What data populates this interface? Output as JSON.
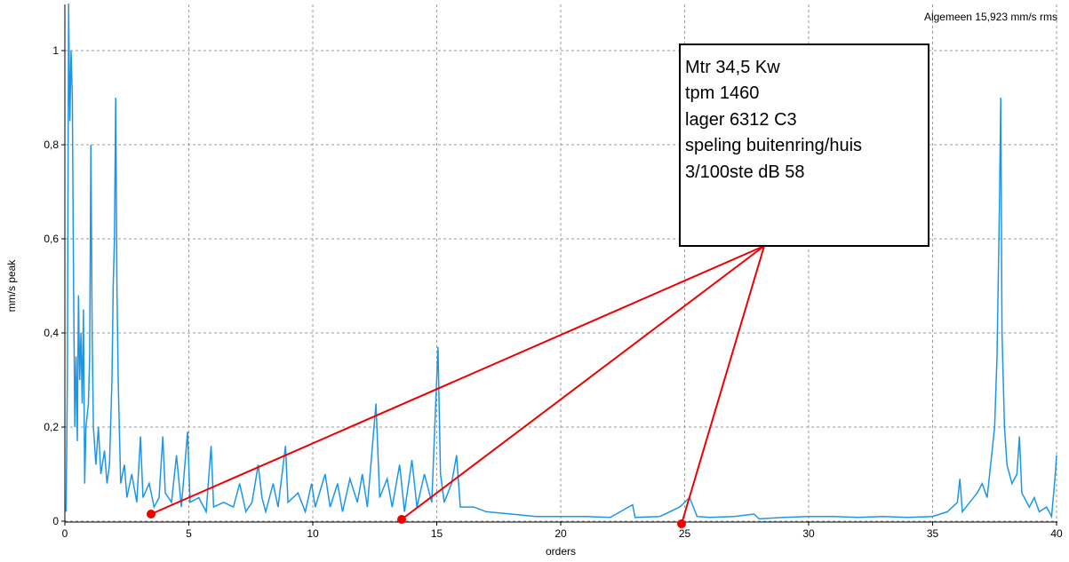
{
  "chart_data": {
    "type": "line",
    "annotation": "Algemeen 15,923 mm/s rms",
    "note_lines": [
      "Mtr 34,5 Kw",
      "tpm 1460",
      "lager 6312 C3",
      "speling buitenring/huis",
      "3/100ste dB 58"
    ],
    "xlabel": "orders",
    "ylabel": "mm/s peak",
    "xlim": [
      0,
      40
    ],
    "ylim": [
      0,
      1.1
    ],
    "xticks": [
      0,
      5,
      10,
      15,
      20,
      25,
      30,
      35,
      40
    ],
    "yticks": [
      0,
      {
        "value": 0.2,
        "label": "0,2"
      },
      {
        "value": 0.4,
        "label": "0,4"
      },
      {
        "value": 0.6,
        "label": "0,6"
      },
      {
        "value": 0.8,
        "label": "0,8"
      },
      1
    ],
    "grid": true,
    "series": [
      {
        "color": "#1e96e8",
        "x": [
          0.05,
          0.1,
          0.15,
          0.2,
          0.25,
          0.3,
          0.35,
          0.4,
          0.45,
          0.5,
          0.55,
          0.6,
          0.65,
          0.7,
          0.75,
          0.8,
          0.85,
          0.95,
          1.0,
          1.05,
          1.1,
          1.15,
          1.25,
          1.35,
          1.45,
          1.6,
          1.7,
          1.8,
          1.9,
          1.95,
          2.0,
          2.05,
          2.1,
          2.15,
          2.25,
          2.4,
          2.5,
          2.7,
          2.9,
          3.05,
          3.15,
          3.4,
          3.6,
          3.8,
          3.95,
          4.05,
          4.3,
          4.5,
          4.7,
          4.95,
          5.05,
          5.4,
          5.7,
          5.9,
          6.0,
          6.4,
          6.8,
          7.05,
          7.3,
          7.55,
          7.8,
          7.95,
          8.1,
          8.4,
          8.6,
          8.9,
          9.0,
          9.4,
          9.7,
          9.95,
          10.1,
          10.5,
          10.7,
          11.0,
          11.2,
          11.5,
          11.8,
          12.0,
          12.2,
          12.55,
          12.7,
          13.0,
          13.2,
          13.5,
          13.7,
          14.0,
          14.2,
          14.5,
          14.8,
          15.05,
          15.15,
          15.3,
          15.6,
          15.8,
          15.95,
          16.5,
          17.0,
          18.0,
          19.0,
          20.0,
          21.0,
          22.0,
          22.9,
          23.0,
          24.0,
          24.8,
          25.2,
          25.5,
          26.0,
          27.0,
          27.8,
          28.0,
          29.0,
          30.0,
          31.0,
          32.0,
          33.0,
          34.0,
          35.0,
          35.6,
          36.0,
          36.1,
          36.2,
          36.5,
          36.8,
          37.0,
          37.2,
          37.4,
          37.5,
          37.6,
          37.7,
          37.75,
          37.8,
          37.9,
          38.0,
          38.2,
          38.4,
          38.5,
          38.6,
          38.9,
          39.1,
          39.3,
          39.6,
          39.8,
          39.95,
          40.0
        ],
        "values": [
          0.02,
          0.3,
          1.1,
          0.85,
          1.0,
          0.9,
          0.5,
          0.2,
          0.35,
          0.17,
          0.48,
          0.3,
          0.4,
          0.25,
          0.45,
          0.08,
          0.2,
          0.25,
          0.35,
          0.8,
          0.4,
          0.2,
          0.12,
          0.2,
          0.1,
          0.15,
          0.08,
          0.12,
          0.3,
          0.5,
          0.6,
          0.9,
          0.5,
          0.3,
          0.08,
          0.12,
          0.05,
          0.1,
          0.04,
          0.18,
          0.05,
          0.08,
          0.03,
          0.05,
          0.18,
          0.06,
          0.04,
          0.14,
          0.03,
          0.19,
          0.04,
          0.05,
          0.02,
          0.16,
          0.03,
          0.04,
          0.03,
          0.08,
          0.02,
          0.04,
          0.12,
          0.05,
          0.02,
          0.08,
          0.03,
          0.16,
          0.04,
          0.06,
          0.02,
          0.08,
          0.03,
          0.1,
          0.03,
          0.08,
          0.02,
          0.09,
          0.04,
          0.1,
          0.03,
          0.25,
          0.05,
          0.09,
          0.03,
          0.12,
          0.02,
          0.13,
          0.03,
          0.1,
          0.04,
          0.37,
          0.1,
          0.04,
          0.08,
          0.14,
          0.03,
          0.03,
          0.02,
          0.015,
          0.01,
          0.01,
          0.01,
          0.008,
          0.035,
          0.008,
          0.01,
          0.03,
          0.05,
          0.01,
          0.008,
          0.01,
          0.015,
          0.005,
          0.008,
          0.01,
          0.01,
          0.008,
          0.01,
          0.008,
          0.01,
          0.02,
          0.04,
          0.09,
          0.02,
          0.04,
          0.06,
          0.08,
          0.05,
          0.15,
          0.2,
          0.35,
          0.68,
          0.9,
          0.4,
          0.2,
          0.12,
          0.08,
          0.1,
          0.18,
          0.06,
          0.03,
          0.05,
          0.02,
          0.03,
          0.01,
          0.1,
          0.14
        ]
      }
    ]
  }
}
